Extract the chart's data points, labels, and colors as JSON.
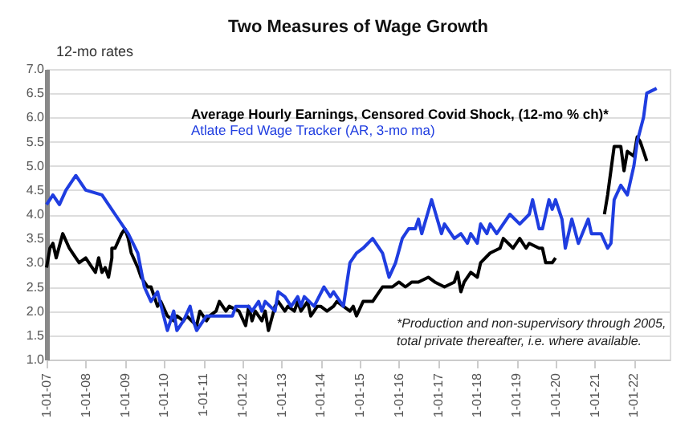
{
  "chart_data": {
    "type": "line",
    "title": "Two Measures of Wage Growth",
    "ylabel": "12-mo rates",
    "xlim": [
      "2007-01",
      "2022-12"
    ],
    "xticks": [
      {
        "value": "2007",
        "label": "1-01-07"
      },
      {
        "value": "2008",
        "label": "1-01-08"
      },
      {
        "value": "2009",
        "label": "1-01-09"
      },
      {
        "value": "2010",
        "label": "1-01-10"
      },
      {
        "value": "2011",
        "label": "1-01-11"
      },
      {
        "value": "2012",
        "label": "1-01-12"
      },
      {
        "value": "2013",
        "label": "1-01-13"
      },
      {
        "value": "2014",
        "label": "1-01-14"
      },
      {
        "value": "2015",
        "label": "1-01-15"
      },
      {
        "value": "2016",
        "label": "1-01-16"
      },
      {
        "value": "2017",
        "label": "1-01-17"
      },
      {
        "value": "2018",
        "label": "1-01-18"
      },
      {
        "value": "2019",
        "label": "1-01-19"
      },
      {
        "value": "2020",
        "label": "1-01-20"
      },
      {
        "value": "2021",
        "label": "1-01-21"
      },
      {
        "value": "2022",
        "label": "1-01-22"
      }
    ],
    "ylim": [
      1,
      7
    ],
    "yticks": [
      {
        "value": 1,
        "label": "1.0"
      },
      {
        "value": 1.5,
        "label": "1.5"
      },
      {
        "value": 2,
        "label": "2.0"
      },
      {
        "value": 2.5,
        "label": "2.5"
      },
      {
        "value": 3,
        "label": "3.0"
      },
      {
        "value": 3.5,
        "label": "3.5"
      },
      {
        "value": 4,
        "label": "4.0"
      },
      {
        "value": 4.5,
        "label": "4.5"
      },
      {
        "value": 5,
        "label": "5.0"
      },
      {
        "value": 5.5,
        "label": "5.5"
      },
      {
        "value": 6,
        "label": "6.0"
      },
      {
        "value": 6.5,
        "label": "6.5"
      },
      {
        "value": 7,
        "label": "7.0"
      }
    ],
    "grid": "y",
    "legend": "top",
    "line_style": "solid",
    "marker": "none",
    "annotations": [
      "*Production and non-supervisory through 2005,",
      "total private thereafter, i.e. where available."
    ],
    "series": [
      {
        "name": "Average Hourly Earnings, Censored Covid Shock,  (12-mo % ch)*",
        "color": "#000000",
        "x": [
          "2007-01",
          "2007-02",
          "2007-03",
          "2007-04",
          "2007-06",
          "2007-08",
          "2007-09",
          "2007-11",
          "2008-01",
          "2008-03",
          "2008-04",
          "2008-05",
          "2008-06",
          "2008-07",
          "2008-08",
          "2008-09",
          "2008-09",
          "2008-10",
          "2008-12",
          "2009-01",
          "2009-02",
          "2009-03",
          "2009-05",
          "2009-06",
          "2009-08",
          "2009-09",
          "2009-11",
          "2009-12",
          "2010-02",
          "2010-04",
          "2010-05",
          "2010-07",
          "2010-08",
          "2010-11",
          "2010-12",
          "2011-02",
          "2011-03",
          "2011-05",
          "2011-06",
          "2011-08",
          "2011-09",
          "2011-12",
          "2012-02",
          "2012-03",
          "2012-04",
          "2012-05",
          "2012-07",
          "2012-08",
          "2012-09",
          "2012-11",
          "2012-12",
          "2013-02",
          "2013-03",
          "2013-05",
          "2013-06",
          "2013-07",
          "2013-09",
          "2013-10",
          "2013-12",
          "2014-01",
          "2014-03",
          "2014-05",
          "2014-06",
          "2014-08",
          "2014-10",
          "2014-11",
          "2014-12",
          "2015-02",
          "2015-03",
          "2015-05",
          "2015-08",
          "2015-11",
          "2016-01",
          "2016-03",
          "2016-05",
          "2016-07",
          "2016-10",
          "2016-12",
          "2017-03",
          "2017-06",
          "2017-07",
          "2017-08",
          "2017-09",
          "2017-11",
          "2018-01",
          "2018-02",
          "2018-05",
          "2018-08",
          "2018-09",
          "2018-12",
          "2019-02",
          "2019-04",
          "2019-05",
          "2019-08",
          "2019-09",
          "2019-10",
          "2019-12",
          "2020-01",
          "2020-06",
          "2021-04",
          "2021-05",
          "2021-07",
          "2021-09",
          "2021-10",
          "2021-11",
          "2022-01",
          "2022-02",
          "2022-03",
          "2022-04",
          "2022-05"
        ],
        "values": [
          2.9,
          3.3,
          3.4,
          3.1,
          3.6,
          3.3,
          3.2,
          3.0,
          3.1,
          2.9,
          2.8,
          3.1,
          2.8,
          2.9,
          2.7,
          3.1,
          3.3,
          3.3,
          3.6,
          3.7,
          3.5,
          3.2,
          2.9,
          2.7,
          2.5,
          2.5,
          2.1,
          2.2,
          1.9,
          1.8,
          1.9,
          1.8,
          1.9,
          1.7,
          2.0,
          1.8,
          1.9,
          2.0,
          2.2,
          2.0,
          2.1,
          2.0,
          1.7,
          2.1,
          1.8,
          2.0,
          1.8,
          2.0,
          1.6,
          2.1,
          2.2,
          2.0,
          2.1,
          2.0,
          2.2,
          2.0,
          2.2,
          1.9,
          2.1,
          2.1,
          2.0,
          2.1,
          2.2,
          2.1,
          2.0,
          2.1,
          1.9,
          2.2,
          2.2,
          2.2,
          2.5,
          2.5,
          2.6,
          2.5,
          2.6,
          2.6,
          2.7,
          2.6,
          2.5,
          2.6,
          2.8,
          2.4,
          2.6,
          2.8,
          2.7,
          3.0,
          3.2,
          3.3,
          3.5,
          3.3,
          3.5,
          3.3,
          3.4,
          3.3,
          3.3,
          3.0,
          3.0,
          3.1,
          null,
          4.0,
          4.4,
          5.4,
          5.4,
          4.9,
          5.3,
          5.2,
          5.6,
          5.5,
          5.3,
          5.1
        ]
      },
      {
        "name": "Atlate Fed Wage Tracker (AR, 3-mo ma)",
        "color": "#1f3de0",
        "x": [
          "2007-01",
          "2007-03",
          "2007-05",
          "2007-07",
          "2007-10",
          "2008-01",
          "2008-06",
          "2008-10",
          "2009-01",
          "2009-02",
          "2009-05",
          "2009-07",
          "2009-09",
          "2009-11",
          "2010-02",
          "2010-04",
          "2010-05",
          "2010-07",
          "2010-09",
          "2010-10",
          "2010-11",
          "2011-02",
          "2011-10",
          "2011-11",
          "2012-03",
          "2012-04",
          "2012-06",
          "2012-07",
          "2012-08",
          "2012-11",
          "2012-12",
          "2013-02",
          "2013-04",
          "2013-06",
          "2013-07",
          "2013-08",
          "2013-11",
          "2014-02",
          "2014-04",
          "2014-05",
          "2014-07",
          "2014-08",
          "2014-10",
          "2014-12",
          "2015-02",
          "2015-05",
          "2015-08",
          "2015-10",
          "2015-12",
          "2016-02",
          "2016-04",
          "2016-06",
          "2016-07",
          "2016-08",
          "2016-11",
          "2017-02",
          "2017-03",
          "2017-06",
          "2017-08",
          "2017-10",
          "2017-11",
          "2018-01",
          "2018-02",
          "2018-04",
          "2018-05",
          "2018-07",
          "2018-11",
          "2019-02",
          "2019-05",
          "2019-06",
          "2019-08",
          "2019-09",
          "2019-11",
          "2019-12",
          "2020-01",
          "2020-03",
          "2020-04",
          "2020-06",
          "2020-08",
          "2020-11",
          "2020-12",
          "2021-03",
          "2021-05",
          "2021-06",
          "2021-07",
          "2021-09",
          "2021-11",
          "2022-01",
          "2022-02",
          "2022-04",
          "2022-05",
          "2022-08"
        ],
        "values": [
          4.2,
          4.4,
          4.2,
          4.5,
          4.8,
          4.5,
          4.4,
          4.0,
          3.7,
          3.6,
          3.2,
          2.5,
          2.2,
          2.4,
          1.6,
          2.0,
          1.6,
          1.8,
          2.1,
          1.8,
          1.6,
          1.9,
          1.9,
          2.1,
          2.1,
          2.0,
          2.2,
          2.0,
          2.2,
          2.0,
          2.4,
          2.3,
          2.1,
          2.3,
          2.1,
          2.3,
          2.1,
          2.5,
          2.3,
          2.4,
          2.2,
          2.1,
          3.0,
          3.2,
          3.3,
          3.5,
          3.2,
          2.7,
          3.0,
          3.5,
          3.7,
          3.7,
          3.9,
          3.6,
          4.3,
          3.6,
          3.8,
          3.5,
          3.6,
          3.4,
          3.6,
          3.4,
          3.8,
          3.6,
          3.8,
          3.6,
          4.0,
          3.8,
          4.0,
          4.3,
          3.7,
          3.7,
          4.3,
          4.1,
          4.3,
          3.9,
          3.3,
          3.9,
          3.4,
          3.9,
          3.6,
          3.6,
          3.3,
          3.4,
          4.3,
          4.6,
          4.4,
          5.0,
          5.5,
          6.0,
          6.5,
          6.6
        ]
      }
    ]
  }
}
